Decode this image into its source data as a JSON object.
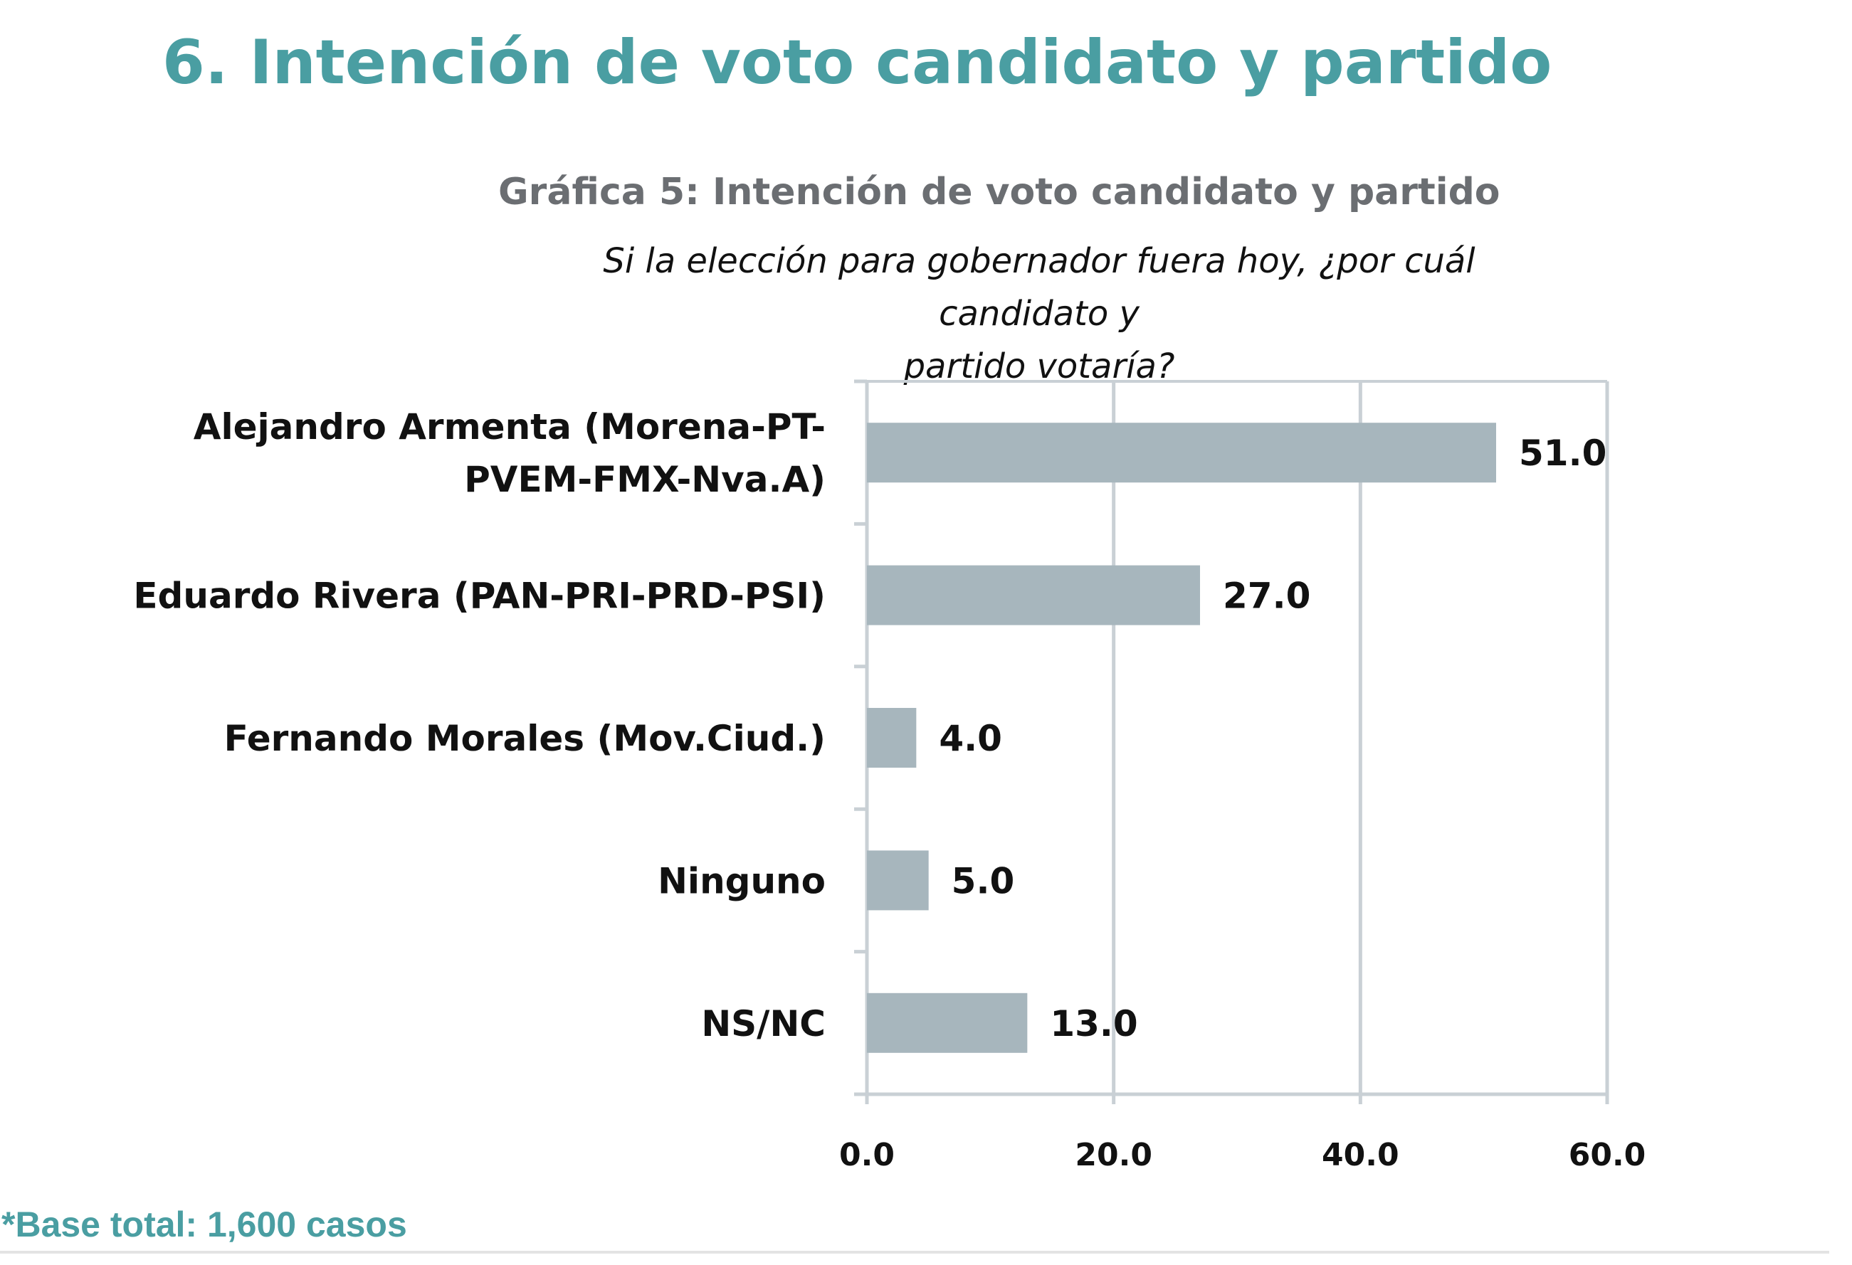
{
  "header": {
    "title": "6. Intención de voto candidato y partido"
  },
  "footer": {
    "note": "*Base total: 1,600 casos"
  },
  "chart_data": {
    "type": "bar",
    "orientation": "horizontal",
    "title": "Gráfica 5: Intención de voto candidato y partido",
    "subtitle_lines": [
      "Si  la elección para gobernador fuera hoy, ¿por cuál candidato y",
      "partido votaría?"
    ],
    "categories": [
      [
        "Alejandro Armenta (Morena-PT-",
        "PVEM-FMX-Nva.A)"
      ],
      [
        "Eduardo Rivera (PAN-PRI-PRD-PSI)"
      ],
      [
        "Fernando Morales (Mov.Ciud.)"
      ],
      [
        "Ninguno"
      ],
      [
        "NS/NC"
      ]
    ],
    "values": [
      51.0,
      27.0,
      4.0,
      5.0,
      13.0
    ],
    "value_labels": [
      "51.0",
      "27.0",
      "4.0",
      "5.0",
      "13.0"
    ],
    "x_ticks": [
      "0.0",
      "20.0",
      "40.0",
      "60.0"
    ],
    "xlim": [
      0,
      60
    ],
    "grid": true,
    "legend": "none",
    "colors": {
      "bar": "#a7b6bd",
      "grid": "#c9d0d5",
      "title_accent": "#4a9ea2",
      "chart_title": "#6b6e72"
    }
  }
}
